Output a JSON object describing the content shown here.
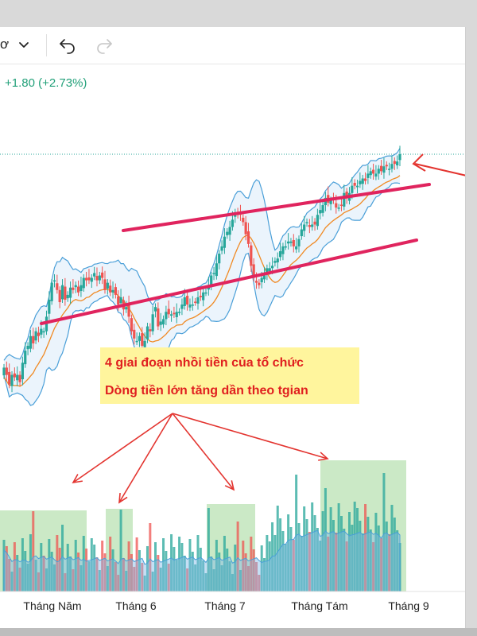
{
  "toolbar": {
    "symbol_fragment": "ơ",
    "icons": [
      "chevron-down-icon",
      "undo-icon",
      "redo-icon"
    ]
  },
  "header": {
    "change_text": "+1.80 (+2.73%)"
  },
  "chart_data": {
    "type": "candlestick",
    "x_ticks": [
      "Tháng Năm",
      "Tháng 6",
      "Tháng 7",
      "Tháng Tám",
      "Tháng 9"
    ],
    "annotations": [
      "4 giai đoạn nhồi tiền của tổ chức",
      "Dòng tiền lớn tăng dần theo tgian"
    ],
    "overlays": [
      "Bollinger Bands",
      "Moving Average",
      "Volume",
      "Volume MA"
    ],
    "colors": {
      "up": "#26a69a",
      "down": "#ef5350",
      "band": "#4a9fd8",
      "ma": "#f08a24",
      "channel": "#e0245e",
      "arrow": "#e3342f",
      "highlight": "#fff59d",
      "volume_zone": "#a8dba0",
      "change_text": "#22a079"
    },
    "candles": [
      [
        29,
        12.0
      ],
      [
        28,
        9.0
      ],
      [
        27,
        5.0
      ],
      [
        26,
        9.0
      ],
      [
        25,
        8.0
      ],
      [
        24,
        9.0
      ],
      [
        23,
        6.0
      ],
      [
        22,
        14.0
      ],
      [
        21,
        19.0
      ],
      [
        20,
        21.0
      ],
      [
        19,
        25.0
      ],
      [
        18,
        22.0
      ],
      [
        17,
        27.0
      ],
      [
        16,
        25.0
      ],
      [
        15,
        28.0
      ],
      [
        14,
        27.0
      ],
      [
        13,
        33.0
      ],
      [
        12,
        40.0
      ],
      [
        11,
        47.0
      ],
      [
        10,
        48.0
      ],
      [
        9,
        44.0
      ],
      [
        8,
        39.0
      ],
      [
        7,
        46.0
      ],
      [
        6,
        40.0
      ],
      [
        5,
        42.0
      ],
      [
        4,
        45.0
      ],
      [
        3,
        44.0
      ],
      [
        2,
        46.0
      ],
      [
        1,
        43.0
      ],
      [
        0,
        46.0
      ],
      [
        -1,
        49.0
      ],
      [
        -2,
        48.0
      ],
      [
        -3,
        48.0
      ],
      [
        -4,
        49.0
      ],
      [
        -5,
        51.0
      ],
      [
        -6,
        48.0
      ],
      [
        -7,
        50.0
      ],
      [
        -8,
        49.0
      ],
      [
        -9,
        44.0
      ],
      [
        -10,
        47.0
      ],
      [
        -11,
        43.0
      ],
      [
        -12,
        44.0
      ],
      [
        -13,
        42.0
      ],
      [
        -14,
        38.0
      ],
      [
        -15,
        41.0
      ],
      [
        -16,
        36.0
      ],
      [
        -17,
        37.0
      ],
      [
        -18,
        33.0
      ],
      [
        -19,
        27.0
      ],
      [
        -20,
        24.0
      ],
      [
        -21,
        23.0
      ],
      [
        -22,
        25.0
      ],
      [
        -23,
        21.0
      ],
      [
        -24,
        23.0
      ],
      [
        -25,
        29.0
      ],
      [
        -26,
        27.0
      ],
      [
        -27,
        34.0
      ],
      [
        -28,
        37.0
      ],
      [
        -29,
        29.0
      ],
      [
        -30,
        31.0
      ],
      [
        -31,
        32.0
      ],
      [
        -32,
        35.0
      ],
      [
        -33,
        34.0
      ],
      [
        -34,
        34.0
      ],
      [
        -35,
        34.0
      ],
      [
        -36,
        35.0
      ],
      [
        -37,
        35.0
      ],
      [
        -38,
        38.0
      ],
      [
        -39,
        41.0
      ],
      [
        -40,
        38.0
      ],
      [
        -41,
        38.0
      ],
      [
        -42,
        38.0
      ],
      [
        -43,
        39.0
      ],
      [
        -44,
        41.0
      ],
      [
        -45,
        41.0
      ],
      [
        -46,
        43.0
      ],
      [
        -47,
        43.0
      ],
      [
        -48,
        46.0
      ],
      [
        -49,
        50.0
      ],
      [
        -50,
        51.0
      ],
      [
        -51,
        55.0
      ],
      [
        -52,
        59.0
      ],
      [
        -53,
        62.0
      ],
      [
        -54,
        66.0
      ],
      [
        -55,
        68.0
      ],
      [
        -56,
        70.0
      ],
      [
        -57,
        73.0
      ],
      [
        -58,
        76.0
      ],
      [
        -59,
        75.0
      ],
      [
        -60,
        75.0
      ],
      [
        -61,
        72.0
      ],
      [
        -62,
        67.0
      ],
      [
        -63,
        63.0
      ],
      [
        -64,
        54.0
      ],
      [
        -65,
        49.0
      ],
      [
        -66,
        47.0
      ],
      [
        -67,
        46.0
      ],
      [
        -68,
        49.0
      ],
      [
        -69,
        50.0
      ],
      [
        -70,
        53.0
      ],
      [
        -71,
        53.0
      ],
      [
        -72,
        54.0
      ],
      [
        -73,
        56.0
      ],
      [
        -74,
        57.0
      ],
      [
        -75,
        60.0
      ],
      [
        -76,
        62.0
      ],
      [
        -77,
        62.0
      ],
      [
        -78,
        64.0
      ],
      [
        -79,
        64.0
      ],
      [
        -80,
        62.0
      ],
      [
        -81,
        62.0
      ],
      [
        -82,
        65.0
      ],
      [
        -83,
        69.0
      ],
      [
        -84,
        71.0
      ],
      [
        -85,
        72.0
      ],
      [
        -86,
        70.0
      ],
      [
        -87,
        71.0
      ],
      [
        -88,
        71.0
      ],
      [
        -89,
        75.0
      ],
      [
        -90,
        77.0
      ],
      [
        -91,
        79.0
      ],
      [
        -92,
        82.0
      ],
      [
        -93,
        80.0
      ],
      [
        -94,
        81.0
      ],
      [
        -95,
        81.0
      ],
      [
        -96,
        78.0
      ],
      [
        -97,
        78.0
      ],
      [
        -98,
        79.0
      ],
      [
        -99,
        84.0
      ],
      [
        -100,
        82.0
      ],
      [
        -101,
        84.0
      ],
      [
        -102,
        87.0
      ],
      [
        -103,
        87.0
      ],
      [
        -104,
        87.0
      ],
      [
        -105,
        89.0
      ],
      [
        -106,
        90.0
      ],
      [
        -107,
        89.0
      ],
      [
        -108,
        92.0
      ],
      [
        -109,
        93.0
      ],
      [
        -110,
        92.0
      ],
      [
        -111,
        92.0
      ],
      [
        -112,
        94.0
      ],
      [
        -113,
        93.0
      ],
      [
        -114,
        95.0
      ],
      [
        -115,
        95.0
      ],
      [
        -116,
        94.0
      ],
      [
        -117,
        96.0
      ],
      [
        -118,
        96.0
      ],
      [
        -119,
        97.0
      ],
      [
        -120,
        100.0
      ]
    ]
  }
}
